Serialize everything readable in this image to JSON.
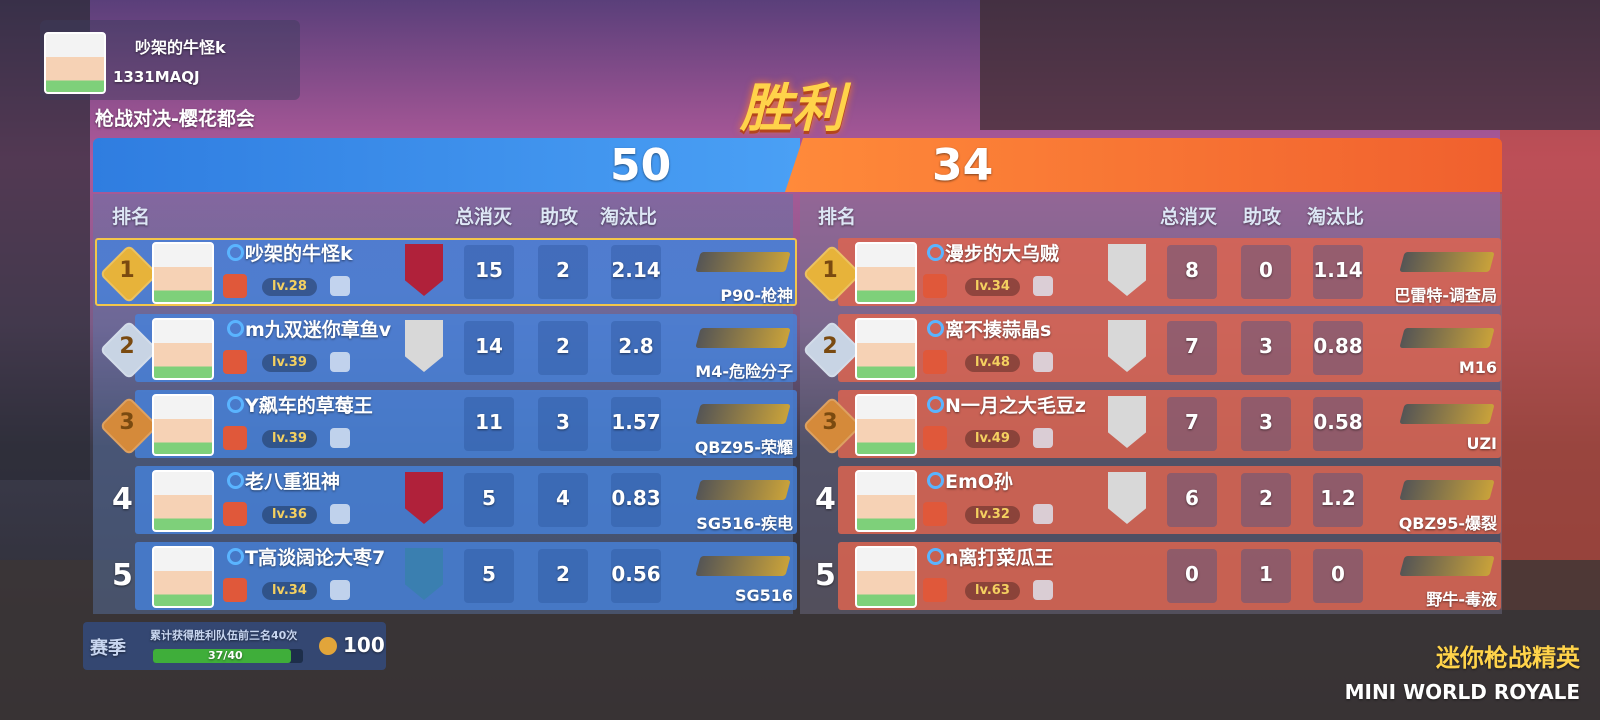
{
  "player": {
    "name": "吵架的牛怪k",
    "id": "1331MAQJ"
  },
  "mode": "枪战对决-樱花都会",
  "result": "胜利",
  "teams": [
    {
      "score": 50,
      "headers": [
        "排名",
        "总消灭",
        "助攻",
        "淘汰比"
      ],
      "rows": [
        {
          "rank": 1,
          "name": "吵架的牛怪k",
          "level": "lv.28",
          "kills": 15,
          "assists": 2,
          "ratio": 2.14,
          "weapon": "P90-枪神"
        },
        {
          "rank": 2,
          "name": "m九双迷你章鱼v",
          "level": "lv.39",
          "kills": 14,
          "assists": 2,
          "ratio": 2.8,
          "weapon": "M4-危险分子"
        },
        {
          "rank": 3,
          "name": "Y飙车的草莓王",
          "level": "lv.39",
          "kills": 11,
          "assists": 3,
          "ratio": 1.57,
          "weapon": "QBZ95-荣耀"
        },
        {
          "rank": 4,
          "name": "老八重狙神",
          "level": "lv.36",
          "kills": 5,
          "assists": 4,
          "ratio": 0.83,
          "weapon": "SG516-疾电"
        },
        {
          "rank": 5,
          "name": "T高谈阔论大枣7",
          "level": "lv.34",
          "kills": 5,
          "assists": 2,
          "ratio": 0.56,
          "weapon": "SG516"
        }
      ]
    },
    {
      "score": 34,
      "headers": [
        "排名",
        "总消灭",
        "助攻",
        "淘汰比"
      ],
      "rows": [
        {
          "rank": 1,
          "name": "漫步的大乌贼",
          "level": "lv.34",
          "kills": 8,
          "assists": 0,
          "ratio": 1.14,
          "weapon": "巴雷特-调查局"
        },
        {
          "rank": 2,
          "name": "离不揍蒜晶s",
          "level": "lv.48",
          "kills": 7,
          "assists": 3,
          "ratio": 0.88,
          "weapon": "M16"
        },
        {
          "rank": 3,
          "name": "N一月之大毛豆z",
          "level": "lv.49",
          "kills": 7,
          "assists": 3,
          "ratio": 0.58,
          "weapon": "UZI"
        },
        {
          "rank": 4,
          "name": "EmO孙",
          "level": "lv.32",
          "kills": 6,
          "assists": 2,
          "ratio": 1.2,
          "weapon": "QBZ95-爆裂"
        },
        {
          "rank": 5,
          "name": "n离打菜瓜王",
          "level": "lv.63",
          "kills": 0,
          "assists": 1,
          "ratio": 0,
          "weapon": "野牛-毒液"
        }
      ]
    }
  ],
  "season": {
    "label": "赛季",
    "description": "累计获得胜利队伍前三名40次",
    "progress": "37/40",
    "coins": 100
  },
  "logo": {
    "title": "迷你枪战精英",
    "subtitle": "MINI WORLD ROYALE"
  }
}
